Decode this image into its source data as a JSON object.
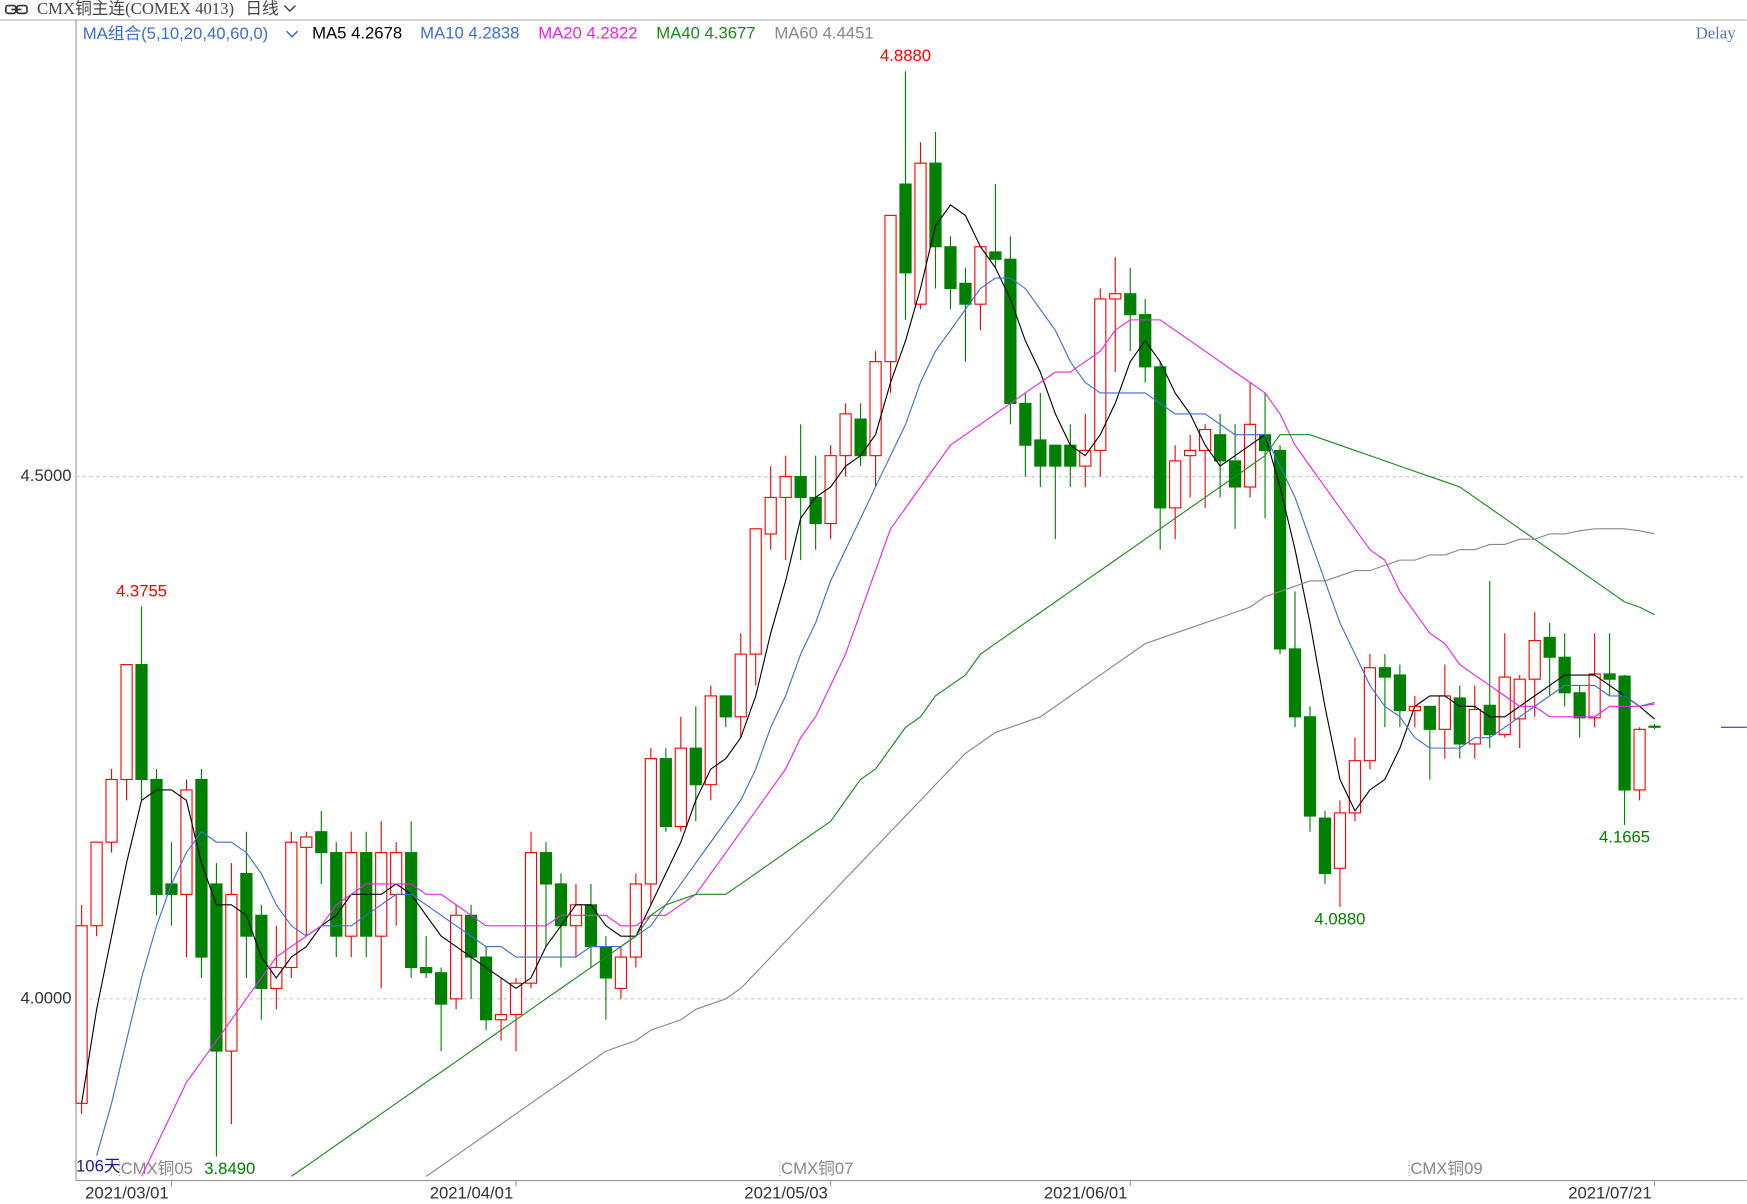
{
  "chart_data": {
    "type": "candlestick",
    "title": "CMX铜主连(COMEX 4013)",
    "period": "日线",
    "indicator": "MA组合(5,10,20,40,60,0)",
    "status": "Delay",
    "count_label": "106天",
    "contract_labels": [
      "CMX铜05",
      "CMX铜07",
      "CMX铜09"
    ],
    "annotations": [
      "4.3755",
      "4.8880",
      "3.8490",
      "4.0880",
      "4.1665"
    ],
    "up_color": "#ff0000",
    "down_color": "#008000",
    "grid": true,
    "ylim": [
      3.826,
      4.937
    ],
    "yticks": [
      {
        "value": 4,
        "label": "4.0000"
      },
      {
        "value": 4.5,
        "label": "4.5000"
      }
    ],
    "categories": [
      null,
      null,
      null,
      null,
      null,
      null,
      "2021/03/01",
      null,
      null,
      null,
      null,
      null,
      null,
      null,
      null,
      null,
      null,
      null,
      null,
      null,
      null,
      null,
      null,
      null,
      null,
      null,
      null,
      null,
      null,
      "2021/04/01",
      null,
      null,
      null,
      null,
      null,
      null,
      null,
      null,
      null,
      null,
      null,
      null,
      null,
      null,
      null,
      null,
      null,
      null,
      null,
      null,
      "2021/05/03",
      null,
      null,
      null,
      null,
      null,
      null,
      null,
      null,
      null,
      null,
      null,
      null,
      null,
      null,
      null,
      null,
      null,
      null,
      null,
      "2021/06/01",
      null,
      null,
      null,
      null,
      null,
      null,
      null,
      null,
      null,
      null,
      null,
      null,
      null,
      null,
      null,
      null,
      null,
      null,
      null,
      null,
      null,
      null,
      null,
      null,
      null,
      null,
      null,
      null,
      null,
      null,
      null,
      null,
      null,
      null,
      "2021/07/21"
    ],
    "open": [
      3.9,
      4.07,
      4.15,
      4.21,
      4.32,
      4.21,
      4.11,
      4.1,
      4.21,
      4.11,
      3.95,
      4.12,
      4.08,
      4.01,
      4.03,
      4.145,
      4.16,
      4.14,
      4.06,
      4.14,
      4.06,
      4.1,
      4.14,
      4.03,
      4.025,
      4.0,
      4.08,
      4.04,
      3.98,
      3.985,
      4.015,
      4.14,
      4.11,
      4.07,
      4.09,
      4.05,
      4.01,
      4.04,
      4.11,
      4.23,
      4.165,
      4.24,
      4.205,
      4.29,
      4.27,
      4.33,
      4.445,
      4.48,
      4.5,
      4.48,
      4.455,
      4.52,
      4.555,
      4.52,
      4.61,
      4.78,
      4.665,
      4.8,
      4.72,
      4.685,
      4.665,
      4.715,
      4.708,
      4.57,
      4.535,
      4.53,
      4.53,
      4.51,
      4.525,
      4.67,
      4.675,
      4.655,
      4.605,
      4.47,
      4.52,
      4.525,
      4.54,
      4.515,
      4.49,
      4.54,
      4.525,
      4.335,
      4.27,
      4.173,
      4.125,
      4.178,
      4.228,
      4.317,
      4.31,
      4.276,
      4.28,
      4.258,
      4.288,
      4.244,
      4.281,
      4.253,
      4.268,
      4.306,
      4.346,
      4.327,
      4.293,
      4.269,
      4.311,
      4.309,
      4.2,
      4.261
    ],
    "high": [
      4.09,
      4.15,
      4.22,
      4.32,
      4.3755,
      4.22,
      4.15,
      4.21,
      4.22,
      4.13,
      4.13,
      4.16,
      4.09,
      4.07,
      4.16,
      4.16,
      4.18,
      4.15,
      4.16,
      4.16,
      4.17,
      4.15,
      4.17,
      4.06,
      4.03,
      4.09,
      4.09,
      4.05,
      4.02,
      4.02,
      4.16,
      4.15,
      4.12,
      4.11,
      4.11,
      4.06,
      4.05,
      4.12,
      4.24,
      4.24,
      4.27,
      4.28,
      4.3,
      4.29,
      4.35,
      4.45,
      4.51,
      4.52,
      4.55,
      4.52,
      4.53,
      4.57,
      4.57,
      4.62,
      4.75,
      4.888,
      4.82,
      4.83,
      4.73,
      4.7,
      4.72,
      4.78,
      4.73,
      4.58,
      4.58,
      4.53,
      4.55,
      4.56,
      4.68,
      4.71,
      4.7,
      4.67,
      4.61,
      4.53,
      4.54,
      4.55,
      4.56,
      4.55,
      4.59,
      4.58,
      4.53,
      4.39,
      4.28,
      4.18,
      4.19,
      4.25,
      4.33,
      4.33,
      4.32,
      4.29,
      4.28,
      4.32,
      4.3,
      4.3,
      4.4,
      4.35,
      4.31,
      4.37,
      4.36,
      4.35,
      4.3,
      4.35,
      4.35,
      4.31,
      4.26,
      4.263
    ],
    "low": [
      3.89,
      4.06,
      4.14,
      4.19,
      4.19,
      4.08,
      4.07,
      4.04,
      4.02,
      3.849,
      3.88,
      4.02,
      3.98,
      3.99,
      4.02,
      4.06,
      4.11,
      4.04,
      4.04,
      4.04,
      4.01,
      4.07,
      4.02,
      4.02,
      3.95,
      3.99,
      4.0,
      3.97,
      3.96,
      3.95,
      4.01,
      4.05,
      4.03,
      4.04,
      4.03,
      3.98,
      4.0,
      4.03,
      4.09,
      4.16,
      4.16,
      4.17,
      4.19,
      4.26,
      4.25,
      4.3,
      4.43,
      4.42,
      4.42,
      4.43,
      4.44,
      4.5,
      4.51,
      4.49,
      4.58,
      4.65,
      4.66,
      4.68,
      4.66,
      4.61,
      4.64,
      4.7,
      4.55,
      4.5,
      4.49,
      4.44,
      4.49,
      4.49,
      4.5,
      4.6,
      4.62,
      4.59,
      4.43,
      4.44,
      4.48,
      4.47,
      4.48,
      4.45,
      4.48,
      4.46,
      4.33,
      4.26,
      4.16,
      4.11,
      4.088,
      4.17,
      4.22,
      4.26,
      4.26,
      4.26,
      4.21,
      4.23,
      4.23,
      4.23,
      4.24,
      4.25,
      4.24,
      4.27,
      4.29,
      4.28,
      4.25,
      4.26,
      4.29,
      4.1665,
      4.19,
      4.258
    ],
    "close": [
      4.07,
      4.15,
      4.21,
      4.32,
      4.21,
      4.1,
      4.1,
      4.2,
      4.04,
      3.95,
      4.1,
      4.06,
      4.01,
      4.03,
      4.15,
      4.155,
      4.14,
      4.06,
      4.14,
      4.06,
      4.14,
      4.14,
      4.03,
      4.025,
      3.995,
      4.08,
      4.04,
      3.98,
      3.985,
      4.015,
      4.14,
      4.11,
      4.07,
      4.09,
      4.05,
      4.02,
      4.04,
      4.11,
      4.23,
      4.165,
      4.24,
      4.205,
      4.29,
      4.27,
      4.33,
      4.45,
      4.48,
      4.5,
      4.48,
      4.455,
      4.52,
      4.56,
      4.52,
      4.61,
      4.75,
      4.695,
      4.8,
      4.72,
      4.68,
      4.665,
      4.72,
      4.708,
      4.57,
      4.53,
      4.51,
      4.51,
      4.51,
      4.525,
      4.67,
      4.675,
      4.655,
      4.605,
      4.47,
      4.515,
      4.525,
      4.545,
      4.515,
      4.49,
      4.55,
      4.525,
      4.335,
      4.27,
      4.175,
      4.12,
      4.178,
      4.228,
      4.317,
      4.308,
      4.276,
      4.28,
      4.258,
      4.29,
      4.244,
      4.277,
      4.253,
      4.308,
      4.306,
      4.343,
      4.327,
      4.293,
      4.269,
      4.311,
      4.306,
      4.2,
      4.258,
      4.26
    ],
    "series": [
      {
        "name": "MA5",
        "color": "#000000",
        "current": 4.2678,
        "values": [
          3.9,
          3.99,
          4.06,
          4.13,
          4.19,
          4.2,
          4.2,
          4.19,
          4.13,
          4.09,
          4.09,
          4.08,
          4.04,
          4.02,
          4.04,
          4.05,
          4.07,
          4.08,
          4.1,
          4.1,
          4.1,
          4.11,
          4.1,
          4.08,
          4.06,
          4.05,
          4.04,
          4.03,
          4.02,
          4.01,
          4.02,
          4.05,
          4.07,
          4.09,
          4.09,
          4.07,
          4.06,
          4.06,
          4.09,
          4.12,
          4.15,
          4.19,
          4.22,
          4.23,
          4.25,
          4.29,
          4.35,
          4.4,
          4.46,
          4.48,
          4.49,
          4.51,
          4.52,
          4.54,
          4.59,
          4.63,
          4.68,
          4.74,
          4.76,
          4.75,
          4.72,
          4.7,
          4.67,
          4.63,
          4.6,
          4.56,
          4.53,
          4.52,
          4.54,
          4.57,
          4.61,
          4.63,
          4.61,
          4.58,
          4.56,
          4.53,
          4.51,
          4.52,
          4.53,
          4.54,
          4.49,
          4.43,
          4.36,
          4.28,
          4.21,
          4.18,
          4.2,
          4.21,
          4.24,
          4.28,
          4.29,
          4.29,
          4.28,
          4.28,
          4.27,
          4.27,
          4.28,
          4.29,
          4.3,
          4.31,
          4.31,
          4.31,
          4.3,
          4.29,
          4.28,
          4.2678
        ]
      },
      {
        "name": "MA10",
        "color": "#3a6fd8",
        "current": 4.2838,
        "values": [
          null,
          3.85,
          3.9,
          3.96,
          4.02,
          4.07,
          4.11,
          4.14,
          4.16,
          4.15,
          4.15,
          4.14,
          4.12,
          4.09,
          4.07,
          4.06,
          4.07,
          4.07,
          4.07,
          4.08,
          4.09,
          4.1,
          4.1,
          4.09,
          4.08,
          4.07,
          4.06,
          4.05,
          4.05,
          4.04,
          4.04,
          4.04,
          4.04,
          4.04,
          4.05,
          4.05,
          4.05,
          4.06,
          4.07,
          4.09,
          4.11,
          4.13,
          4.15,
          4.17,
          4.19,
          4.22,
          4.26,
          4.29,
          4.33,
          4.36,
          4.4,
          4.43,
          4.46,
          4.49,
          4.52,
          4.55,
          4.59,
          4.62,
          4.64,
          4.66,
          4.68,
          4.69,
          4.69,
          4.68,
          4.66,
          4.64,
          4.61,
          4.59,
          4.58,
          4.58,
          4.58,
          4.58,
          4.57,
          4.56,
          4.56,
          4.56,
          4.55,
          4.54,
          4.54,
          4.54,
          4.51,
          4.48,
          4.44,
          4.4,
          4.36,
          4.33,
          4.3,
          4.28,
          4.27,
          4.25,
          4.24,
          4.24,
          4.24,
          4.25,
          4.25,
          4.26,
          4.27,
          4.28,
          4.29,
          4.3,
          4.3,
          4.3,
          4.29,
          4.29,
          4.28,
          4.2838
        ]
      },
      {
        "name": "MA20",
        "color": "#ee22ee",
        "current": 4.2822,
        "values": [
          null,
          null,
          null,
          null,
          3.83,
          3.86,
          3.89,
          3.92,
          3.94,
          3.96,
          3.98,
          4.0,
          4.02,
          4.04,
          4.05,
          4.06,
          4.07,
          4.09,
          4.1,
          4.11,
          4.11,
          4.11,
          4.11,
          4.1,
          4.1,
          4.09,
          4.08,
          4.07,
          4.07,
          4.07,
          4.07,
          4.07,
          4.08,
          4.08,
          4.08,
          4.08,
          4.07,
          4.07,
          4.08,
          4.08,
          4.09,
          4.1,
          4.12,
          4.14,
          4.16,
          4.18,
          4.2,
          4.22,
          4.25,
          4.27,
          4.3,
          4.33,
          4.37,
          4.41,
          4.45,
          4.47,
          4.49,
          4.51,
          4.53,
          4.54,
          4.55,
          4.56,
          4.57,
          4.58,
          4.59,
          4.6,
          4.6,
          4.61,
          4.62,
          4.64,
          4.65,
          4.65,
          4.65,
          4.64,
          4.63,
          4.62,
          4.61,
          4.6,
          4.59,
          4.58,
          4.56,
          4.53,
          4.51,
          4.49,
          4.47,
          4.45,
          4.43,
          4.42,
          4.39,
          4.37,
          4.35,
          4.34,
          4.32,
          4.31,
          4.3,
          4.29,
          4.28,
          4.28,
          4.27,
          4.27,
          4.27,
          4.27,
          4.28,
          4.28,
          4.28,
          4.2822
        ]
      },
      {
        "name": "MA40",
        "color": "#1a8a1a",
        "current": 4.3677,
        "values": [
          null,
          null,
          null,
          null,
          null,
          null,
          null,
          null,
          null,
          null,
          null,
          null,
          null,
          null,
          3.83,
          3.84,
          3.85,
          3.86,
          3.87,
          3.88,
          3.89,
          3.9,
          3.91,
          3.92,
          3.93,
          3.94,
          3.95,
          3.96,
          3.97,
          3.98,
          3.99,
          4.0,
          4.01,
          4.02,
          4.03,
          4.04,
          4.05,
          4.06,
          4.08,
          4.09,
          4.095,
          4.1,
          4.1,
          4.1,
          4.11,
          4.12,
          4.13,
          4.14,
          4.15,
          4.16,
          4.17,
          4.19,
          4.21,
          4.22,
          4.24,
          4.26,
          4.27,
          4.29,
          4.3,
          4.31,
          4.33,
          4.34,
          4.35,
          4.36,
          4.37,
          4.38,
          4.39,
          4.4,
          4.41,
          4.42,
          4.43,
          4.44,
          4.45,
          4.46,
          4.47,
          4.48,
          4.49,
          4.5,
          4.51,
          4.52,
          4.54,
          4.54,
          4.54,
          4.535,
          4.53,
          4.525,
          4.52,
          4.515,
          4.51,
          4.505,
          4.5,
          4.495,
          4.49,
          4.48,
          4.47,
          4.46,
          4.45,
          4.44,
          4.43,
          4.42,
          4.41,
          4.4,
          4.39,
          4.38,
          4.375,
          4.3677
        ]
      },
      {
        "name": "MA60",
        "color": "#888888",
        "current": 4.4451,
        "values": [
          null,
          null,
          null,
          null,
          null,
          null,
          null,
          null,
          null,
          null,
          null,
          null,
          null,
          null,
          null,
          null,
          null,
          null,
          null,
          null,
          null,
          null,
          null,
          3.83,
          3.84,
          3.85,
          3.86,
          3.87,
          3.88,
          3.89,
          3.9,
          3.91,
          3.92,
          3.93,
          3.94,
          3.95,
          3.955,
          3.96,
          3.97,
          3.975,
          3.98,
          3.99,
          3.995,
          4.0,
          4.01,
          4.025,
          4.04,
          4.055,
          4.07,
          4.085,
          4.1,
          4.115,
          4.13,
          4.145,
          4.16,
          4.175,
          4.19,
          4.205,
          4.22,
          4.235,
          4.245,
          4.255,
          4.26,
          4.265,
          4.27,
          4.28,
          4.29,
          4.3,
          4.31,
          4.32,
          4.33,
          4.34,
          4.345,
          4.35,
          4.355,
          4.36,
          4.365,
          4.37,
          4.375,
          4.385,
          4.39,
          4.395,
          4.4,
          4.4,
          4.405,
          4.41,
          4.41,
          4.415,
          4.42,
          4.42,
          4.425,
          4.425,
          4.43,
          4.43,
          4.435,
          4.435,
          4.44,
          4.44,
          4.445,
          4.445,
          4.448,
          4.45,
          4.45,
          4.45,
          4.448,
          4.4451
        ]
      }
    ]
  }
}
